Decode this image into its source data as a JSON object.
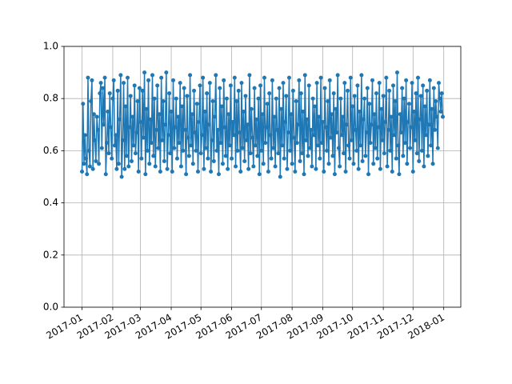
{
  "chart_data": {
    "type": "line",
    "color": "#1f77b4",
    "grid": true,
    "xlim": [
      -18.2,
      382.2
    ],
    "ylim": [
      0,
      1
    ],
    "xticks": [
      {
        "value": 0,
        "label": "2017-01"
      },
      {
        "value": 31,
        "label": "2017-02"
      },
      {
        "value": 59,
        "label": "2017-03"
      },
      {
        "value": 90,
        "label": "2017-04"
      },
      {
        "value": 120,
        "label": "2017-05"
      },
      {
        "value": 151,
        "label": "2017-06"
      },
      {
        "value": 181,
        "label": "2017-07"
      },
      {
        "value": 212,
        "label": "2017-08"
      },
      {
        "value": 243,
        "label": "2017-09"
      },
      {
        "value": 273,
        "label": "2017-10"
      },
      {
        "value": 304,
        "label": "2017-11"
      },
      {
        "value": 334,
        "label": "2017-12"
      },
      {
        "value": 365,
        "label": "2018-01"
      }
    ],
    "yticks": [
      {
        "value": 0,
        "label": "0.0"
      },
      {
        "value": 0.2,
        "label": "0.2"
      },
      {
        "value": 0.4,
        "label": "0.4"
      },
      {
        "value": 0.6,
        "label": "0.6"
      },
      {
        "value": 0.8,
        "label": "0.8"
      },
      {
        "value": 1,
        "label": "1.0"
      }
    ],
    "x": [
      0,
      1,
      2,
      3,
      4,
      5,
      6,
      7,
      8,
      9,
      10,
      11,
      12,
      13,
      14,
      15,
      16,
      17,
      18,
      19,
      20,
      21,
      22,
      23,
      24,
      25,
      26,
      27,
      28,
      29,
      30,
      31,
      32,
      33,
      34,
      35,
      36,
      37,
      38,
      39,
      40,
      41,
      42,
      43,
      44,
      45,
      46,
      47,
      48,
      49,
      50,
      51,
      52,
      53,
      54,
      55,
      56,
      57,
      58,
      59,
      60,
      61,
      62,
      63,
      64,
      65,
      66,
      67,
      68,
      69,
      70,
      71,
      72,
      73,
      74,
      75,
      76,
      77,
      78,
      79,
      80,
      81,
      82,
      83,
      84,
      85,
      86,
      87,
      88,
      89,
      90,
      91,
      92,
      93,
      94,
      95,
      96,
      97,
      98,
      99,
      100,
      101,
      102,
      103,
      104,
      105,
      106,
      107,
      108,
      109,
      110,
      111,
      112,
      113,
      114,
      115,
      116,
      117,
      118,
      119,
      120,
      121,
      122,
      123,
      124,
      125,
      126,
      127,
      128,
      129,
      130,
      131,
      132,
      133,
      134,
      135,
      136,
      137,
      138,
      139,
      140,
      141,
      142,
      143,
      144,
      145,
      146,
      147,
      148,
      149,
      150,
      151,
      152,
      153,
      154,
      155,
      156,
      157,
      158,
      159,
      160,
      161,
      162,
      163,
      164,
      165,
      166,
      167,
      168,
      169,
      170,
      171,
      172,
      173,
      174,
      175,
      176,
      177,
      178,
      179,
      180,
      181,
      182,
      183,
      184,
      185,
      186,
      187,
      188,
      189,
      190,
      191,
      192,
      193,
      194,
      195,
      196,
      197,
      198,
      199,
      200,
      201,
      202,
      203,
      204,
      205,
      206,
      207,
      208,
      209,
      210,
      211,
      212,
      213,
      214,
      215,
      216,
      217,
      218,
      219,
      220,
      221,
      222,
      223,
      224,
      225,
      226,
      227,
      228,
      229,
      230,
      231,
      232,
      233,
      234,
      235,
      236,
      237,
      238,
      239,
      240,
      241,
      242,
      243,
      244,
      245,
      246,
      247,
      248,
      249,
      250,
      251,
      252,
      253,
      254,
      255,
      256,
      257,
      258,
      259,
      260,
      261,
      262,
      263,
      264,
      265,
      266,
      267,
      268,
      269,
      270,
      271,
      272,
      273,
      274,
      275,
      276,
      277,
      278,
      279,
      280,
      281,
      282,
      283,
      284,
      285,
      286,
      287,
      288,
      289,
      290,
      291,
      292,
      293,
      294,
      295,
      296,
      297,
      298,
      299,
      300,
      301,
      302,
      303,
      304,
      305,
      306,
      307,
      308,
      309,
      310,
      311,
      312,
      313,
      314,
      315,
      316,
      317,
      318,
      319,
      320,
      321,
      322,
      323,
      324,
      325,
      326,
      327,
      328,
      329,
      330,
      331,
      332,
      333,
      334,
      335,
      336,
      337,
      338,
      339,
      340,
      341,
      342,
      343,
      344,
      345,
      346,
      347,
      348,
      349,
      350,
      351,
      352,
      353,
      354,
      355,
      356,
      357,
      358,
      359,
      360,
      361,
      362,
      363,
      364
    ],
    "values": [
      0.52,
      0.78,
      0.55,
      0.66,
      0.57,
      0.51,
      0.88,
      0.6,
      0.54,
      0.79,
      0.87,
      0.53,
      0.74,
      0.64,
      0.56,
      0.73,
      0.68,
      0.55,
      0.82,
      0.86,
      0.61,
      0.84,
      0.7,
      0.88,
      0.51,
      0.63,
      0.75,
      0.59,
      0.82,
      0.69,
      0.57,
      0.8,
      0.87,
      0.62,
      0.66,
      0.53,
      0.83,
      0.55,
      0.72,
      0.89,
      0.5,
      0.64,
      0.86,
      0.53,
      0.77,
      0.58,
      0.88,
      0.54,
      0.69,
      0.81,
      0.56,
      0.73,
      0.62,
      0.85,
      0.59,
      0.67,
      0.79,
      0.52,
      0.84,
      0.71,
      0.57,
      0.83,
      0.65,
      0.9,
      0.51,
      0.76,
      0.6,
      0.87,
      0.55,
      0.72,
      0.63,
      0.89,
      0.58,
      0.8,
      0.54,
      0.68,
      0.85,
      0.61,
      0.74,
      0.52,
      0.88,
      0.64,
      0.79,
      0.56,
      0.7,
      0.9,
      0.53,
      0.66,
      0.82,
      0.59,
      0.75,
      0.52,
      0.87,
      0.61,
      0.69,
      0.8,
      0.57,
      0.73,
      0.63,
      0.86,
      0.54,
      0.77,
      0.6,
      0.84,
      0.68,
      0.51,
      0.81,
      0.65,
      0.58,
      0.89,
      0.62,
      0.74,
      0.55,
      0.83,
      0.67,
      0.6,
      0.78,
      0.52,
      0.71,
      0.85,
      0.59,
      0.66,
      0.88,
      0.53,
      0.75,
      0.61,
      0.82,
      0.57,
      0.7,
      0.86,
      0.52,
      0.64,
      0.79,
      0.56,
      0.73,
      0.89,
      0.6,
      0.68,
      0.51,
      0.84,
      0.63,
      0.77,
      0.55,
      0.87,
      0.69,
      0.58,
      0.8,
      0.53,
      0.74,
      0.62,
      0.85,
      0.57,
      0.71,
      0.66,
      0.88,
      0.54,
      0.79,
      0.6,
      0.83,
      0.67,
      0.52,
      0.86,
      0.61,
      0.75,
      0.56,
      0.81,
      0.64,
      0.7,
      0.53,
      0.89,
      0.59,
      0.76,
      0.65,
      0.54,
      0.84,
      0.62,
      0.72,
      0.58,
      0.8,
      0.51,
      0.85,
      0.6,
      0.74,
      0.55,
      0.88,
      0.63,
      0.69,
      0.78,
      0.52,
      0.82,
      0.66,
      0.57,
      0.87,
      0.61,
      0.73,
      0.54,
      0.8,
      0.68,
      0.59,
      0.84,
      0.5,
      0.76,
      0.62,
      0.86,
      0.57,
      0.71,
      0.81,
      0.53,
      0.67,
      0.88,
      0.6,
      0.74,
      0.55,
      0.83,
      0.65,
      0.52,
      0.79,
      0.63,
      0.7,
      0.87,
      0.56,
      0.82,
      0.59,
      0.75,
      0.51,
      0.89,
      0.64,
      0.72,
      0.58,
      0.85,
      0.61,
      0.68,
      0.54,
      0.8,
      0.66,
      0.77,
      0.53,
      0.86,
      0.62,
      0.73,
      0.57,
      0.88,
      0.63,
      0.71,
      0.52,
      0.84,
      0.69,
      0.6,
      0.79,
      0.55,
      0.87,
      0.65,
      0.74,
      0.58,
      0.82,
      0.51,
      0.76,
      0.67,
      0.89,
      0.61,
      0.54,
      0.8,
      0.66,
      0.73,
      0.59,
      0.86,
      0.52,
      0.7,
      0.83,
      0.62,
      0.57,
      0.88,
      0.64,
      0.77,
      0.55,
      0.81,
      0.68,
      0.6,
      0.85,
      0.53,
      0.75,
      0.62,
      0.89,
      0.56,
      0.72,
      0.8,
      0.58,
      0.67,
      0.84,
      0.51,
      0.78,
      0.63,
      0.7,
      0.87,
      0.55,
      0.74,
      0.61,
      0.82,
      0.57,
      0.69,
      0.86,
      0.53,
      0.76,
      0.64,
      0.81,
      0.59,
      0.71,
      0.88,
      0.54,
      0.68,
      0.83,
      0.6,
      0.73,
      0.52,
      0.85,
      0.66,
      0.79,
      0.57,
      0.9,
      0.62,
      0.51,
      0.74,
      0.67,
      0.84,
      0.58,
      0.8,
      0.63,
      0.87,
      0.55,
      0.71,
      0.78,
      0.61,
      0.69,
      0.86,
      0.52,
      0.75,
      0.64,
      0.82,
      0.59,
      0.88,
      0.56,
      0.72,
      0.81,
      0.6,
      0.85,
      0.54,
      0.77,
      0.66,
      0.83,
      0.58,
      0.7,
      0.87,
      0.62,
      0.76,
      0.55,
      0.84,
      0.68,
      0.79,
      0.73,
      0.61,
      0.86,
      0.8,
      0.75,
      0.82,
      0.73
    ]
  }
}
